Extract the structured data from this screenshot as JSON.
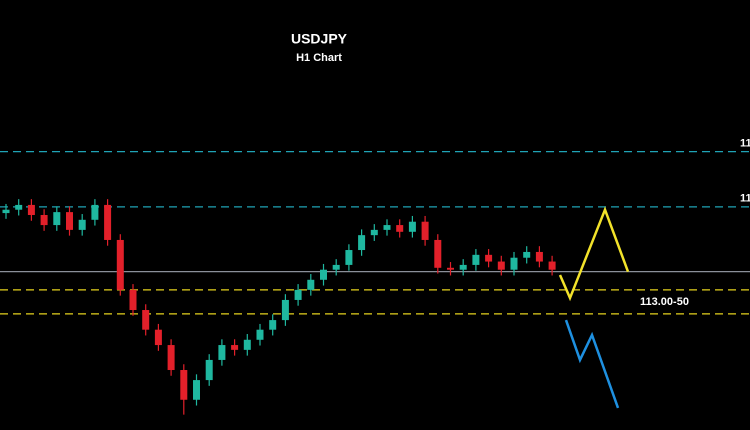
{
  "chart_data": {
    "type": "candlestick",
    "title": "USDJPY",
    "subtitle": "H1 Chart",
    "ylim": [
      110.58,
      119.54
    ],
    "up_color": "#1fb8a0",
    "down_color": "#e3202a",
    "open": [
      115.1,
      115.17,
      115.27,
      115.06,
      114.85,
      115.12,
      114.75,
      114.96,
      115.27,
      114.54,
      113.5,
      113.08,
      112.67,
      112.35,
      111.83,
      111.21,
      111.62,
      112.04,
      112.35,
      112.25,
      112.46,
      112.67,
      112.87,
      113.29,
      113.5,
      113.71,
      113.92,
      114.02,
      114.33,
      114.64,
      114.75,
      114.85,
      114.71,
      114.92,
      114.54,
      113.96,
      113.92,
      114.02,
      114.23,
      114.09,
      113.92,
      114.17,
      114.29,
      114.09
    ],
    "high": [
      115.29,
      115.39,
      115.39,
      115.18,
      115.24,
      115.24,
      115.08,
      115.39,
      115.39,
      114.66,
      113.62,
      113.2,
      112.79,
      112.47,
      111.95,
      111.74,
      112.16,
      112.47,
      112.47,
      112.58,
      112.79,
      112.99,
      113.41,
      113.62,
      113.83,
      114.04,
      114.14,
      114.45,
      114.76,
      114.87,
      114.97,
      114.97,
      115.04,
      115.04,
      114.66,
      114.08,
      114.14,
      114.35,
      114.35,
      114.21,
      114.29,
      114.41,
      114.41,
      114.21
    ],
    "low": [
      114.98,
      115.05,
      114.94,
      114.73,
      114.73,
      114.63,
      114.63,
      114.84,
      114.42,
      113.38,
      112.96,
      112.55,
      112.23,
      111.71,
      110.9,
      111.09,
      111.5,
      111.92,
      112.13,
      112.13,
      112.34,
      112.55,
      112.75,
      113.17,
      113.38,
      113.59,
      113.8,
      113.9,
      114.21,
      114.52,
      114.63,
      114.59,
      114.59,
      114.42,
      113.84,
      113.8,
      113.8,
      113.9,
      113.97,
      113.8,
      113.8,
      114.05,
      113.97,
      113.8
    ],
    "close": [
      115.17,
      115.27,
      115.06,
      114.85,
      115.12,
      114.75,
      114.96,
      115.27,
      114.54,
      113.5,
      113.08,
      112.67,
      112.35,
      111.83,
      111.21,
      111.62,
      112.04,
      112.35,
      112.25,
      112.46,
      112.67,
      112.87,
      113.29,
      113.5,
      113.71,
      113.92,
      114.02,
      114.33,
      114.64,
      114.75,
      114.85,
      114.71,
      114.92,
      114.54,
      113.96,
      113.92,
      114.02,
      114.23,
      114.09,
      113.92,
      114.17,
      114.29,
      114.09,
      113.92
    ],
    "levels": [
      {
        "value": 116.38,
        "label": "11",
        "color": "#1fa3b5",
        "style": "dashed"
      },
      {
        "value": 115.23,
        "label": "11",
        "color": "#1fa3b5",
        "style": "dashed"
      },
      {
        "value": 113.88,
        "color": "#8a8f99",
        "style": "solid"
      },
      {
        "value": 113.5,
        "color": "#e6d21e",
        "style": "dashed"
      },
      {
        "value": 113.0,
        "color": "#e6d21e",
        "style": "dashed"
      }
    ],
    "zone_label": "113.00-50",
    "projections": [
      {
        "color": "#f2e22a",
        "values": [
          113.81,
          113.33,
          115.17,
          113.88
        ]
      },
      {
        "color": "#1e90e0",
        "values": [
          112.87,
          112.04,
          112.56,
          111.04
        ]
      }
    ]
  }
}
